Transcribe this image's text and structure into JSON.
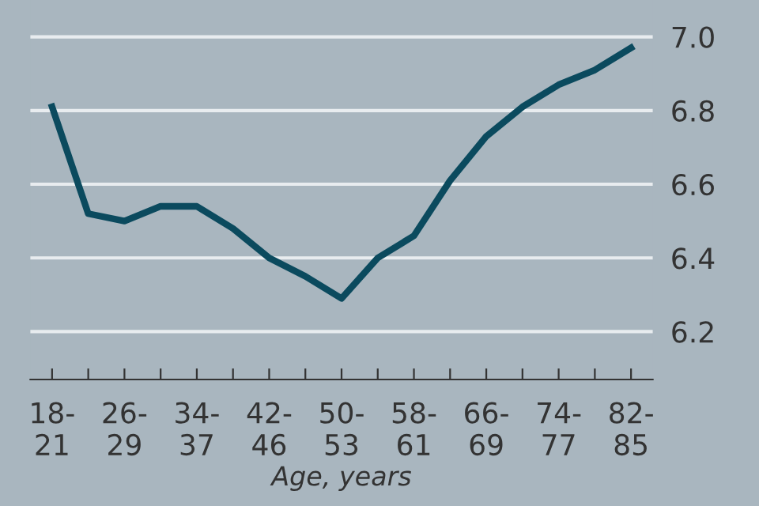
{
  "chart_data": {
    "type": "line",
    "xlabel": "Age, years",
    "categories": [
      "18-\n21",
      null,
      "26-\n29",
      null,
      "34-\n37",
      null,
      "42-\n46",
      null,
      "50-\n53",
      null,
      "58-\n61",
      null,
      "66-\n69",
      null,
      "74-\n77",
      null,
      "82-\n85"
    ],
    "series": [
      {
        "color": "#0b4a5e",
        "values": [
          6.81,
          6.52,
          6.5,
          6.54,
          6.54,
          6.48,
          6.4,
          6.35,
          6.29,
          6.4,
          6.46,
          6.61,
          6.73,
          6.81,
          6.87,
          6.91,
          6.97
        ]
      }
    ],
    "ylim": [
      6.07,
      7.1
    ],
    "yticks": [
      {
        "value": 6.2,
        "label": "6.2"
      },
      {
        "value": 6.4,
        "label": "6.4"
      },
      {
        "value": 6.6,
        "label": "6.6"
      },
      {
        "value": 6.8,
        "label": "6.8"
      },
      {
        "value": 7.0,
        "label": "7.0"
      }
    ],
    "grid": "y",
    "legend": false,
    "marker": "none",
    "line_style": "solid"
  }
}
